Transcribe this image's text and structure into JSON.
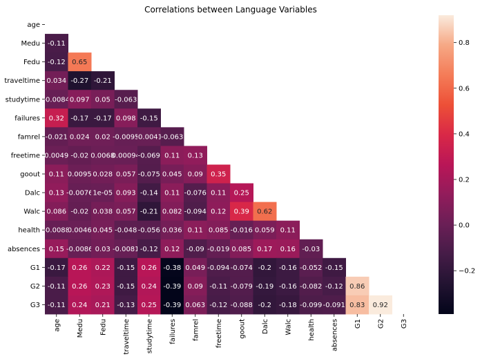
{
  "chart_data": {
    "type": "heatmap",
    "title": "Correlations between Language Variables",
    "variables": [
      "age",
      "Medu",
      "Fedu",
      "traveltime",
      "studytime",
      "failures",
      "famrel",
      "freetime",
      "goout",
      "Dalc",
      "Walc",
      "health",
      "absences",
      "G1",
      "G2",
      "G3"
    ],
    "mask": "upper-triangle-and-diagonal",
    "cell_labels": [
      [],
      [
        "-0.11"
      ],
      [
        "-0.12",
        "0.65"
      ],
      [
        "0.034",
        "-0.27",
        "-0.21"
      ],
      [
        "-0.0084",
        "0.097",
        "0.05",
        "-0.063"
      ],
      [
        "0.32",
        "-0.17",
        "-0.17",
        "0.098",
        "-0.15"
      ],
      [
        "-0.021",
        "0.024",
        "0.02",
        "-0.0095",
        "-0.0041",
        "-0.063"
      ],
      [
        "0.0049",
        "-0.02",
        "0.0068",
        "0.00094",
        "-0.069",
        "0.11",
        "0.13"
      ],
      [
        "0.11",
        "0.0095",
        "0.028",
        "0.057",
        "-0.075",
        "0.045",
        "0.09",
        "0.35"
      ],
      [
        "0.13",
        "-0.0076",
        "1e-05",
        "0.093",
        "-0.14",
        "0.11",
        "-0.076",
        "0.11",
        "0.25"
      ],
      [
        "0.086",
        "-0.02",
        "0.038",
        "0.057",
        "-0.21",
        "0.082",
        "-0.094",
        "0.12",
        "0.39",
        "0.62"
      ],
      [
        "-0.0088",
        "0.0046",
        "0.045",
        "-0.048",
        "-0.056",
        "0.036",
        "0.11",
        "0.085",
        "-0.016",
        "0.059",
        "0.11"
      ],
      [
        "0.15",
        "-0.0086",
        "0.03",
        "-0.0081",
        "-0.12",
        "0.12",
        "-0.09",
        "-0.019",
        "0.085",
        "0.17",
        "0.16",
        "-0.03"
      ],
      [
        "-0.17",
        "0.26",
        "0.22",
        "-0.15",
        "0.26",
        "-0.38",
        "0.049",
        "-0.094",
        "-0.074",
        "-0.2",
        "-0.16",
        "-0.052",
        "-0.15"
      ],
      [
        "-0.11",
        "0.26",
        "0.23",
        "-0.15",
        "0.24",
        "-0.39",
        "0.09",
        "-0.11",
        "-0.079",
        "-0.19",
        "-0.16",
        "-0.082",
        "-0.12",
        "0.86"
      ],
      [
        "-0.11",
        "0.24",
        "0.21",
        "-0.13",
        "0.25",
        "-0.39",
        "0.063",
        "-0.12",
        "-0.088",
        "-0.2",
        "-0.18",
        "-0.099",
        "-0.091",
        "0.83",
        "0.92"
      ]
    ],
    "cell_label_display": [
      [],
      [
        "-0.11"
      ],
      [
        "-0.12",
        "0.65"
      ],
      [
        "0.034",
        "-0.27",
        "-0.21"
      ],
      [
        "-0.0084",
        "0.097",
        "0.05",
        "-0.063"
      ],
      [
        "0.32",
        "-0.17",
        "-0.17",
        "0.098",
        "-0.15"
      ],
      [
        "-0.021",
        "0.024",
        "0.02",
        "-0.0095",
        "-0.0041",
        "-0.063"
      ],
      [
        "0.0049",
        "-0.02",
        "0.0068",
        "0.00094",
        "-0.069",
        "0.11",
        "0.13"
      ],
      [
        "0.11",
        "0.0095",
        "0.028",
        "0.057",
        "-0.075",
        "0.045",
        "0.09",
        "0.35"
      ],
      [
        "0.13",
        "-0.0076",
        "1e-05",
        "0.093",
        "-0.14",
        "0.11",
        "-0.076",
        "0.11",
        "0.25"
      ],
      [
        "0.086",
        "-0.02",
        "0.038",
        "0.057",
        "-0.21",
        "0.082",
        "-0.094",
        "0.12",
        "0.39",
        "0.62"
      ],
      [
        "-0.0088",
        "0.0046",
        "0.045",
        "-0.048",
        "-0.056",
        "0.036",
        "0.11",
        "0.085",
        "-0.016",
        "0.059",
        "0.11"
      ],
      [
        "0.15",
        "-0.0086",
        "0.03",
        "-0.0081",
        "-0.12",
        "0.12",
        "-0.09",
        "-0.019",
        "0.085",
        "0.17",
        "0.16",
        "-0.03"
      ],
      [
        "-0.17",
        "0.26",
        "0.22",
        "-0.15",
        "0.26",
        "-0.38",
        "0.049",
        "-0.094",
        "-0.074",
        "-0.2",
        "-0.16",
        "-0.052",
        "-0.15"
      ],
      [
        "-0.11",
        "0.26",
        "0.23",
        "-0.15",
        "0.24",
        "-0.39",
        "0.09",
        "-0.11",
        "-0.079",
        "-0.19",
        "-0.16",
        "-0.082",
        "-0.12",
        "0.86"
      ],
      [
        "-0.11",
        "0.24",
        "0.21",
        "-0.13",
        "0.25",
        "-0.39",
        "0.063",
        "-0.12",
        "-0.088",
        "-0.2",
        "-0.18",
        "-0.099",
        "-0.091",
        "0.83",
        "0.92"
      ]
    ],
    "colorbar": {
      "colormap": "rocket",
      "range": [
        -0.39,
        0.92
      ],
      "ticks": [
        -0.2,
        0.0,
        0.2,
        0.4,
        0.6,
        0.8
      ],
      "tick_labels": [
        "−0.2",
        "0.0",
        "0.2",
        "0.4",
        "0.6",
        "0.8"
      ]
    }
  }
}
